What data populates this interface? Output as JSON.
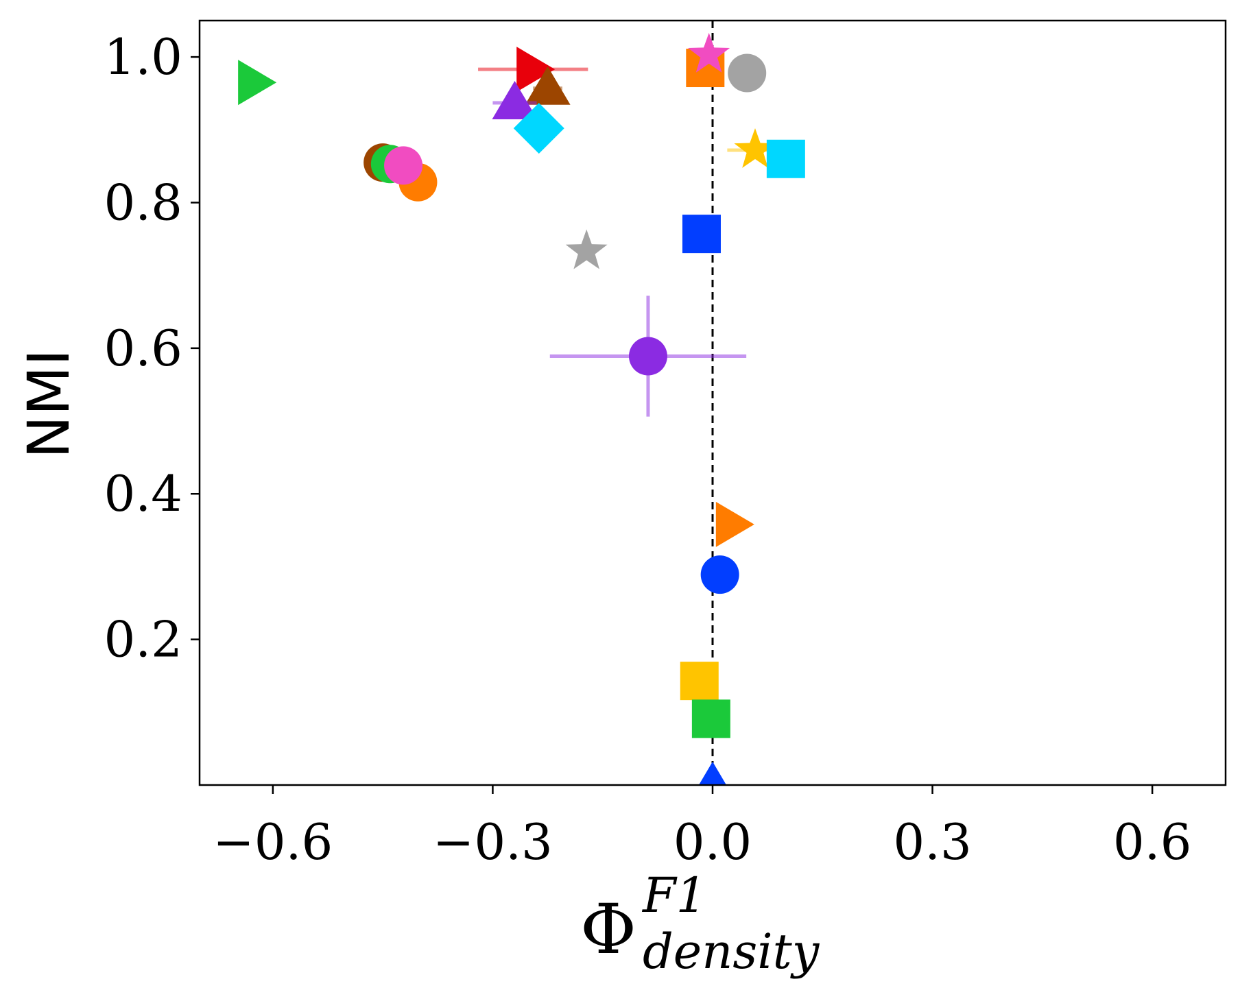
{
  "chart_data": {
    "type": "scatter",
    "title": "",
    "xlabel": {
      "base": "Φ",
      "superscript": "F1",
      "subscript": "density"
    },
    "ylabel": "NMI",
    "xlim": [
      -0.7,
      0.7
    ],
    "ylim": [
      0.0,
      1.05
    ],
    "xticks": [
      -0.6,
      -0.3,
      0.0,
      0.3,
      0.6
    ],
    "xtick_labels": [
      "−0.6",
      "−0.3",
      "0.0",
      "0.3",
      "0.6"
    ],
    "yticks": [
      0.2,
      0.4,
      0.6,
      0.8,
      1.0
    ],
    "ytick_labels": [
      "0.2",
      "0.4",
      "0.6",
      "0.8",
      "1.0"
    ],
    "reference_line": {
      "x": 0.0,
      "style": "dashed",
      "color": "#000000"
    },
    "grid": false,
    "points": [
      {
        "name": "green-triangle-right",
        "x": -0.625,
        "y": 0.965,
        "marker": "triangle-right",
        "color": "#1bc93a"
      },
      {
        "name": "red-triangle-right",
        "x": -0.245,
        "y": 0.983,
        "xerr": 0.075,
        "marker": "triangle-right",
        "color": "#e8000b"
      },
      {
        "name": "brown-triangle-up",
        "x": -0.225,
        "y": 0.957,
        "xerr": 0.02,
        "marker": "triangle-up",
        "color": "#9c4500"
      },
      {
        "name": "purple-triangle-up",
        "x": -0.27,
        "y": 0.937,
        "xerr": 0.03,
        "marker": "triangle-up",
        "color": "#8b2be2"
      },
      {
        "name": "cyan-diamond",
        "x": -0.237,
        "y": 0.902,
        "marker": "diamond",
        "color": "#00d7ff"
      },
      {
        "name": "brown-circle",
        "x": -0.45,
        "y": 0.855,
        "marker": "circle",
        "color": "#9c4500"
      },
      {
        "name": "green-circle",
        "x": -0.44,
        "y": 0.853,
        "marker": "circle",
        "color": "#1bc93a"
      },
      {
        "name": "orange-circle",
        "x": -0.402,
        "y": 0.828,
        "marker": "circle",
        "color": "#ff7c00"
      },
      {
        "name": "pink-circle",
        "x": -0.422,
        "y": 0.851,
        "marker": "circle",
        "color": "#f14cc1"
      },
      {
        "name": "gray-star",
        "x": -0.172,
        "y": 0.733,
        "marker": "star",
        "color": "#a3a3a3"
      },
      {
        "name": "purple-circle",
        "x": -0.088,
        "y": 0.589,
        "xerr": 0.134,
        "yerr": 0.083,
        "marker": "circle",
        "color": "#8b2be2"
      },
      {
        "name": "orange-square",
        "x": -0.01,
        "y": 0.985,
        "marker": "square",
        "color": "#ff7c00"
      },
      {
        "name": "pink-star",
        "x": -0.005,
        "y": 1.003,
        "marker": "star",
        "color": "#f14cc1"
      },
      {
        "name": "gray-circle",
        "x": 0.047,
        "y": 0.978,
        "marker": "circle",
        "color": "#a3a3a3"
      },
      {
        "name": "yellow-star",
        "x": 0.058,
        "y": 0.872,
        "xerr": 0.038,
        "marker": "star",
        "color": "#ffc400"
      },
      {
        "name": "cyan-square",
        "x": 0.1,
        "y": 0.86,
        "xerr": 0.025,
        "marker": "square",
        "color": "#00d7ff"
      },
      {
        "name": "blue-square",
        "x": -0.015,
        "y": 0.757,
        "marker": "square",
        "color": "#023eff"
      },
      {
        "name": "orange-triangle-right",
        "x": 0.027,
        "y": 0.358,
        "marker": "triangle-right",
        "color": "#ff7c00"
      },
      {
        "name": "blue-circle",
        "x": 0.01,
        "y": 0.289,
        "marker": "circle",
        "color": "#023eff"
      },
      {
        "name": "yellow-square",
        "x": -0.018,
        "y": 0.143,
        "marker": "square",
        "color": "#ffc400"
      },
      {
        "name": "green-square",
        "x": -0.002,
        "y": 0.091,
        "marker": "square",
        "color": "#1bc93a"
      },
      {
        "name": "blue-triangle-up",
        "x": 0.0,
        "y": 0.002,
        "marker": "triangle-up",
        "color": "#023eff"
      }
    ]
  }
}
